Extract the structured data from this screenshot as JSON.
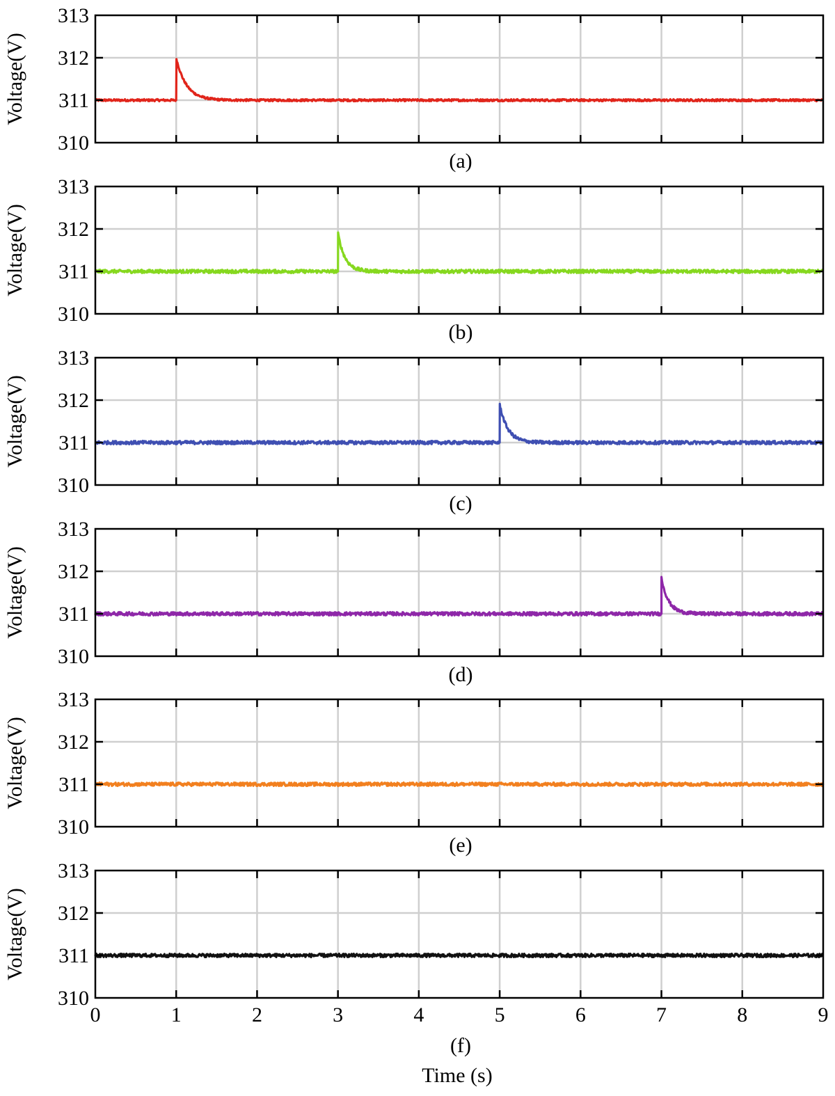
{
  "chart_data": {
    "type": "line",
    "xlabel": "Time (s)",
    "xlim": [
      0,
      9
    ],
    "x_ticks": [
      "0",
      "1",
      "2",
      "3",
      "4",
      "5",
      "6",
      "7",
      "8",
      "9"
    ],
    "grid": true,
    "panels": [
      {
        "label": "(a)",
        "ylabel": "Voltage(V)",
        "ylim": [
          310,
          313
        ],
        "y_ticks": [
          "310",
          "311",
          "312",
          "313"
        ],
        "color": "#e1251b",
        "baseline": 311.0,
        "noise_amplitude": 0.025,
        "event": {
          "time": 1.0,
          "peak": 312.0,
          "settle_time": 1.5
        }
      },
      {
        "label": "(b)",
        "ylabel": "Voltage(V)",
        "ylim": [
          310,
          313
        ],
        "y_ticks": [
          "310",
          "311",
          "312",
          "313"
        ],
        "color": "#86d81f",
        "baseline": 311.0,
        "noise_amplitude": 0.04,
        "event": {
          "time": 3.0,
          "peak": 311.9,
          "settle_time": 3.35
        }
      },
      {
        "label": "(c)",
        "ylabel": "Voltage(V)",
        "ylim": [
          310,
          313
        ],
        "y_ticks": [
          "310",
          "311",
          "312",
          "313"
        ],
        "color": "#3f4fb2",
        "baseline": 311.0,
        "noise_amplitude": 0.04,
        "event": {
          "time": 5.0,
          "peak": 311.9,
          "settle_time": 5.4
        }
      },
      {
        "label": "(d)",
        "ylabel": "Voltage(V)",
        "ylim": [
          310,
          313
        ],
        "y_ticks": [
          "310",
          "311",
          "312",
          "313"
        ],
        "color": "#8e27a8",
        "baseline": 311.0,
        "noise_amplitude": 0.04,
        "event": {
          "time": 7.0,
          "peak": 311.85,
          "settle_time": 7.35
        }
      },
      {
        "label": "(e)",
        "ylabel": "Voltage(V)",
        "ylim": [
          310,
          313
        ],
        "y_ticks": [
          "310",
          "311",
          "312",
          "313"
        ],
        "color": "#f2801f",
        "baseline": 311.0,
        "noise_amplitude": 0.04,
        "event": null
      },
      {
        "label": "(f)",
        "ylabel": "Voltage(V)",
        "ylim": [
          310,
          313
        ],
        "y_ticks": [
          "310",
          "311",
          "312",
          "313"
        ],
        "color": "#111111",
        "baseline": 311.0,
        "noise_amplitude": 0.04,
        "event": null
      }
    ]
  }
}
